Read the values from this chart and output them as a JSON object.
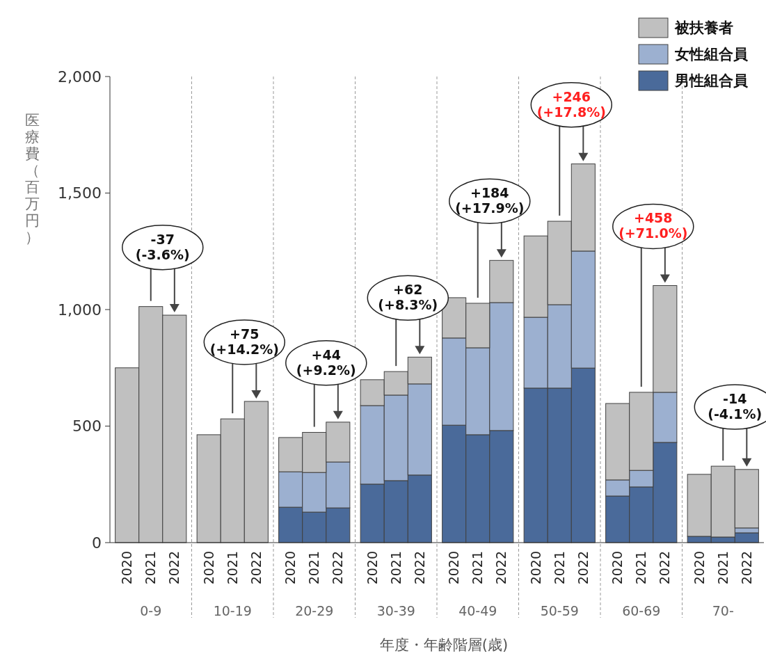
{
  "chart_data": {
    "type": "bar",
    "stacked": true,
    "xlabel": "年度・年齢階層(歳)",
    "ylabel": "医療費（百万円）",
    "legend": "top right",
    "categories": [
      "2020",
      "2021",
      "2022",
      "2020",
      "2021",
      "2022",
      "2020",
      "2021",
      "2022",
      "2020",
      "2021",
      "2022",
      "2020",
      "2021",
      "2022",
      "2020",
      "2021",
      "2022",
      "2020",
      "2021",
      "2022",
      "2020",
      "2021",
      "2022"
    ],
    "series": [
      {
        "name": "男性組合員",
        "color": "#4a6a9a",
        "values": [
          0,
          0,
          0,
          0,
          0,
          0,
          152,
          131,
          149,
          251,
          266,
          290,
          504,
          463,
          481,
          663,
          663,
          749,
          200,
          239,
          430,
          27,
          24,
          42
        ]
      },
      {
        "name": "女性組合員",
        "color": "#9cb0d0",
        "values": [
          0,
          0,
          0,
          null,
          null,
          null,
          152,
          170,
          197,
          337,
          367,
          391,
          374,
          373,
          549,
          304,
          358,
          502,
          69,
          71,
          215,
          0,
          null,
          21
        ]
      },
      {
        "name": "被扶養者",
        "color": "#c0c0c0",
        "values": [
          750,
          1013,
          976,
          463,
          531,
          606,
          147,
          172,
          171,
          111,
          101,
          115,
          173,
          191,
          181,
          349,
          358,
          374,
          328,
          335,
          458,
          266,
          304,
          251
        ]
      }
    ],
    "ylim": [
      0,
      2000
    ],
    "yticks": [
      0,
      500,
      {
        "value": 1000,
        "label": "1,000"
      },
      {
        "value": 1500,
        "label": "1,500"
      },
      {
        "value": 2000,
        "label": "2,000"
      }
    ],
    "annotations": [
      "0-9",
      "10-19",
      "20-29",
      "30-39",
      "40-49",
      "50-59",
      "60-69",
      "70-",
      "-37\n(-3.6%)",
      "+75\n(+14.2%)",
      "+44\n(+9.2%)",
      "+62\n(+8.3%)",
      "+184\n(+17.9%)",
      "+246\n(+17.8%)",
      "+458\n(+71.0%)",
      "-14\n(-4.1%)"
    ]
  }
}
